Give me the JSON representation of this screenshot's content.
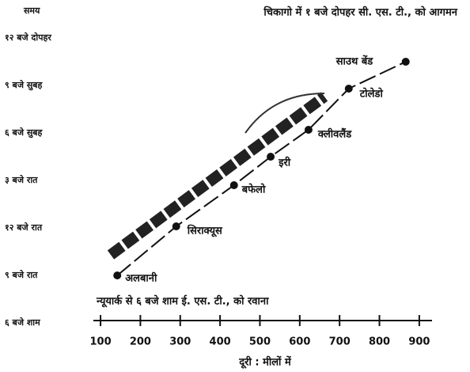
{
  "chart_data": {
    "type": "line",
    "title": "चिकागो में १ बजे दोपहर सी. एस. टी., को आगमन",
    "y_label": "समय",
    "x_label": "दूरी : मीलों में",
    "annotation": "न्यूयार्क से ६ बजे शाम ई. एस. टी., को रवाना",
    "x": [
      142,
      290,
      435,
      527,
      622,
      723,
      866
    ],
    "values": [
      21,
      24.1,
      26.7,
      28.5,
      30.2,
      32.8,
      34.5
    ],
    "point_labels": [
      "अलबानी",
      "सिराक्यूस",
      "बफेलो",
      "इरी",
      "क्लीवलैंड",
      "टोलेडो",
      "साउथ बेंड"
    ],
    "color": "#111111",
    "xlim": [
      82,
      932
    ],
    "ylim": [
      18,
      36
    ],
    "xticks": [
      100,
      200,
      300,
      400,
      500,
      600,
      700,
      800,
      900
    ],
    "yticks": [
      {
        "value": 18,
        "label": "६ बजे शाम"
      },
      {
        "value": 21,
        "label": "९ बजे रात"
      },
      {
        "value": 24,
        "label": "१२ बजे रात"
      },
      {
        "value": 27,
        "label": "३ बजे रात"
      },
      {
        "value": 30,
        "label": "६ बजे सुबह"
      },
      {
        "value": 33,
        "label": "९ बजे सुबह"
      },
      {
        "value": 36,
        "label": "१२ बजे दोपहर"
      }
    ],
    "grid": false
  }
}
